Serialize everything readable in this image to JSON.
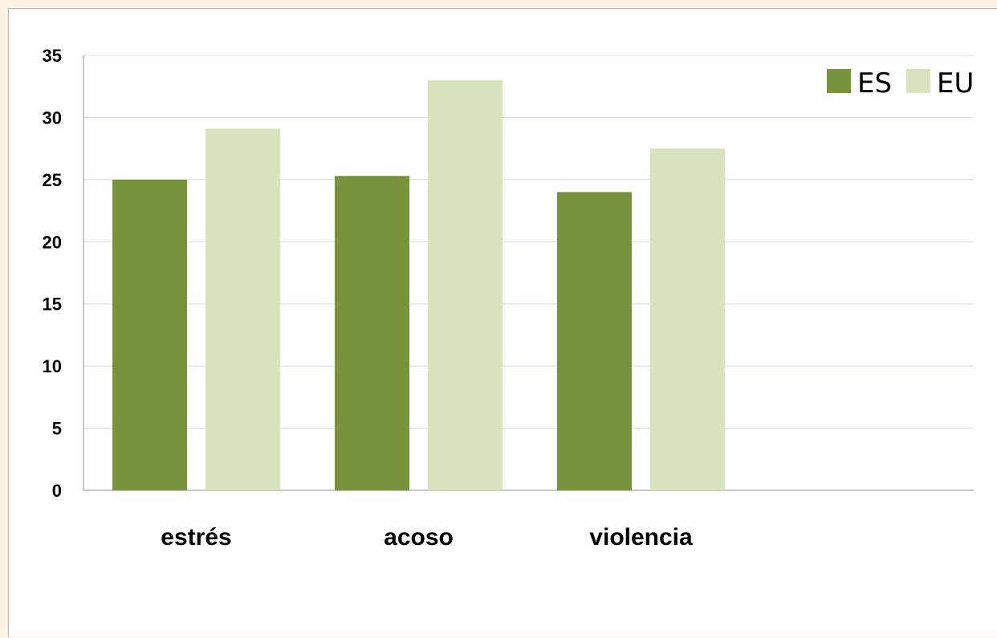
{
  "chart_data": {
    "type": "bar",
    "title": "",
    "xlabel": "",
    "ylabel": "",
    "categories": [
      "estrés",
      "acoso",
      "violencia"
    ],
    "series": [
      {
        "name": "ES",
        "values": [
          25.0,
          25.3,
          24.0
        ],
        "color": "#77933c"
      },
      {
        "name": "EU",
        "values": [
          29.1,
          33.0,
          27.5
        ],
        "color": "#d7e4bd"
      }
    ],
    "ylim": [
      0,
      35
    ],
    "yticks": [
      "0",
      "5",
      "10",
      "15",
      "20",
      "25",
      "30",
      "35"
    ],
    "grid": true,
    "legend_position": "top-right"
  }
}
